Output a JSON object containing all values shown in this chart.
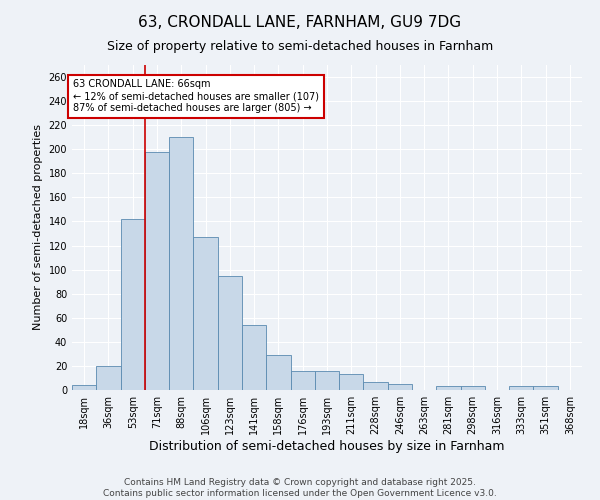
{
  "title1": "63, CRONDALL LANE, FARNHAM, GU9 7DG",
  "title2": "Size of property relative to semi-detached houses in Farnham",
  "xlabel": "Distribution of semi-detached houses by size in Farnham",
  "ylabel": "Number of semi-detached properties",
  "categories": [
    "18sqm",
    "36sqm",
    "53sqm",
    "71sqm",
    "88sqm",
    "106sqm",
    "123sqm",
    "141sqm",
    "158sqm",
    "176sqm",
    "193sqm",
    "211sqm",
    "228sqm",
    "246sqm",
    "263sqm",
    "281sqm",
    "298sqm",
    "316sqm",
    "333sqm",
    "351sqm",
    "368sqm"
  ],
  "values": [
    4,
    20,
    142,
    198,
    210,
    127,
    95,
    54,
    29,
    16,
    16,
    13,
    7,
    5,
    0,
    3,
    3,
    0,
    3,
    3,
    0
  ],
  "bar_color": "#c8d8e8",
  "bar_edge_color": "#5a8ab0",
  "property_line_x": 2.5,
  "property_label": "63 CRONDALL LANE: 66sqm",
  "pct_smaller": "12% of semi-detached houses are smaller (107)",
  "pct_larger": "87% of semi-detached houses are larger (805)",
  "annotation_box_color": "#ffffff",
  "annotation_box_edge": "#cc0000",
  "vline_color": "#cc0000",
  "ylim": [
    0,
    270
  ],
  "yticks": [
    0,
    20,
    40,
    60,
    80,
    100,
    120,
    140,
    160,
    180,
    200,
    220,
    240,
    260
  ],
  "footer_line1": "Contains HM Land Registry data © Crown copyright and database right 2025.",
  "footer_line2": "Contains public sector information licensed under the Open Government Licence v3.0.",
  "background_color": "#eef2f7",
  "grid_color": "#ffffff",
  "title1_fontsize": 11,
  "title2_fontsize": 9,
  "xlabel_fontsize": 9,
  "ylabel_fontsize": 8,
  "tick_fontsize": 7,
  "annot_fontsize": 7,
  "footer_fontsize": 6.5
}
